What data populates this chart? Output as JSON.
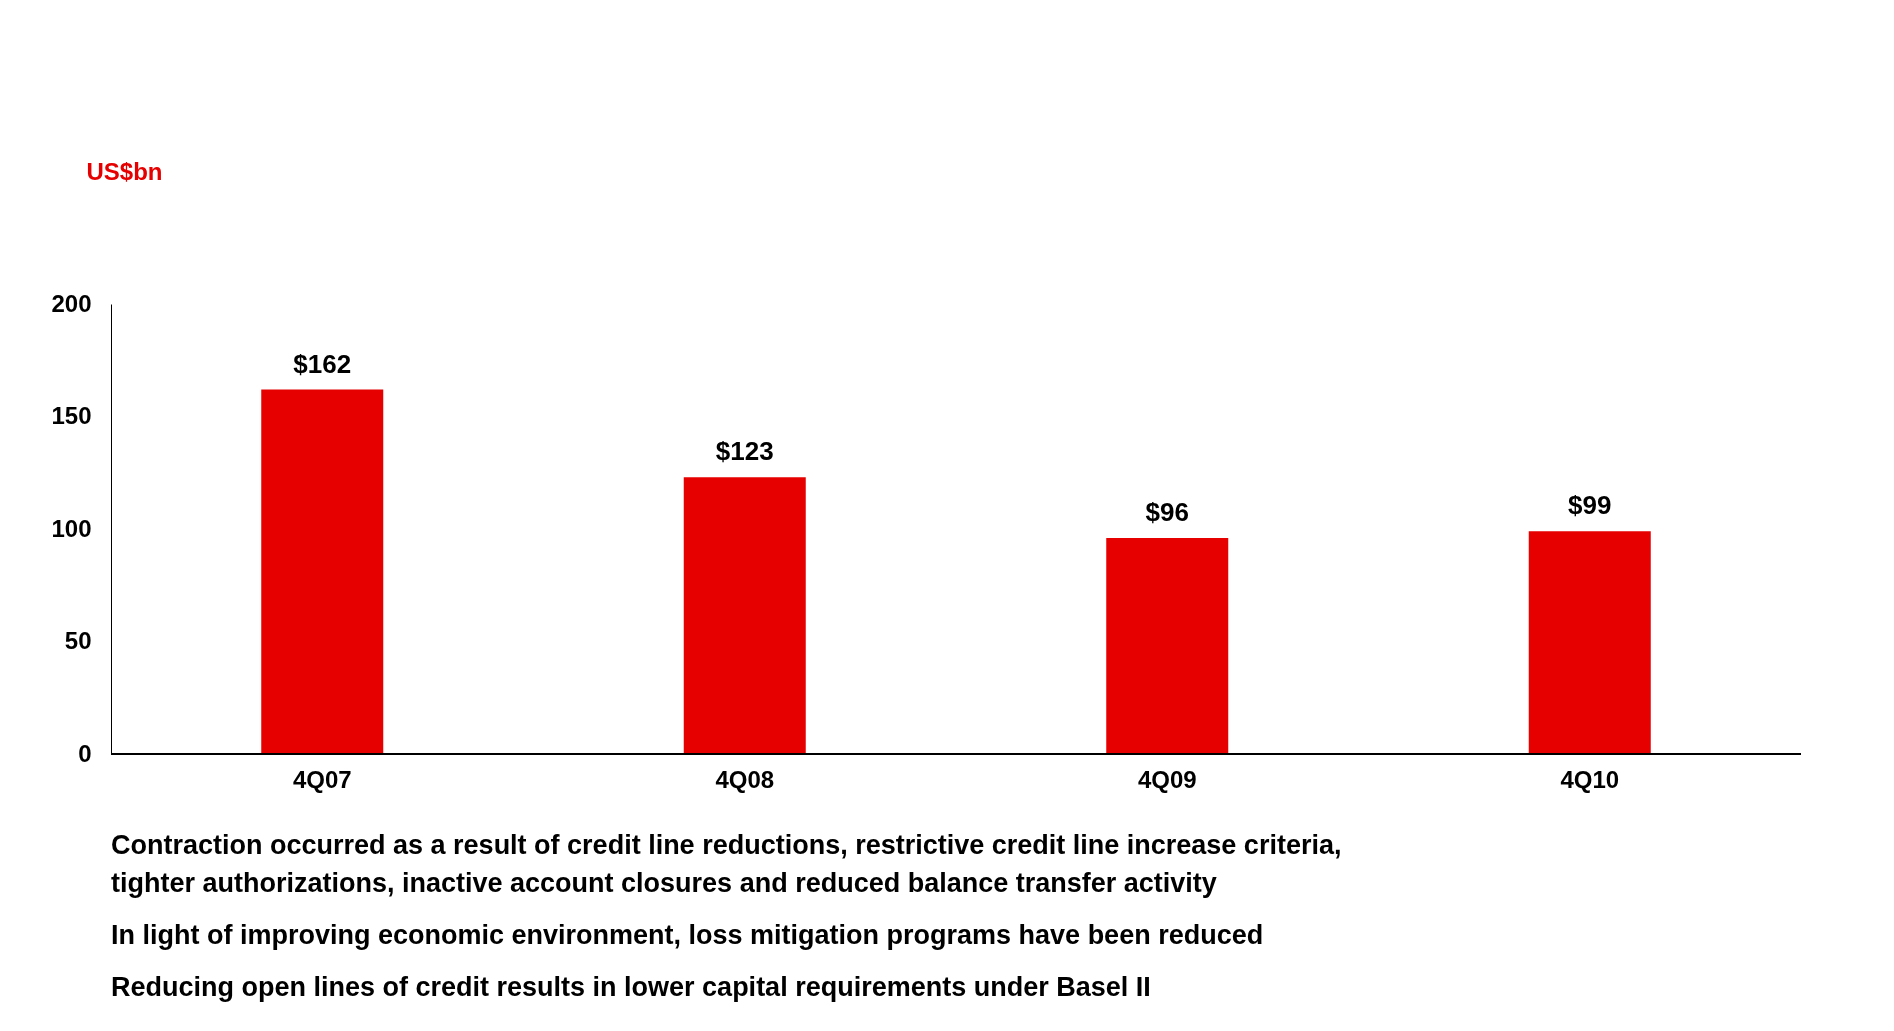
{
  "chart_data": {
    "type": "bar",
    "ylabel": "US$bn",
    "categories": [
      "4Q07",
      "4Q08",
      "4Q09",
      "4Q10"
    ],
    "values": [
      162,
      123,
      96,
      99
    ],
    "value_labels": [
      "$162",
      "$123",
      "$96",
      "$99"
    ],
    "color": "#e60000",
    "ylim": [
      0,
      200
    ],
    "yticks": [
      0,
      50,
      100,
      150,
      200
    ],
    "grid": false,
    "annotations": [
      "Contraction occurred as a result of credit line reductions, restrictive credit line increase criteria, tighter authorizations, inactive account closures and reduced balance transfer activity",
      "In light of improving economic environment, loss mitigation programs have been reduced",
      "Reducing open lines of credit results in lower capital requirements under Basel II"
    ]
  }
}
